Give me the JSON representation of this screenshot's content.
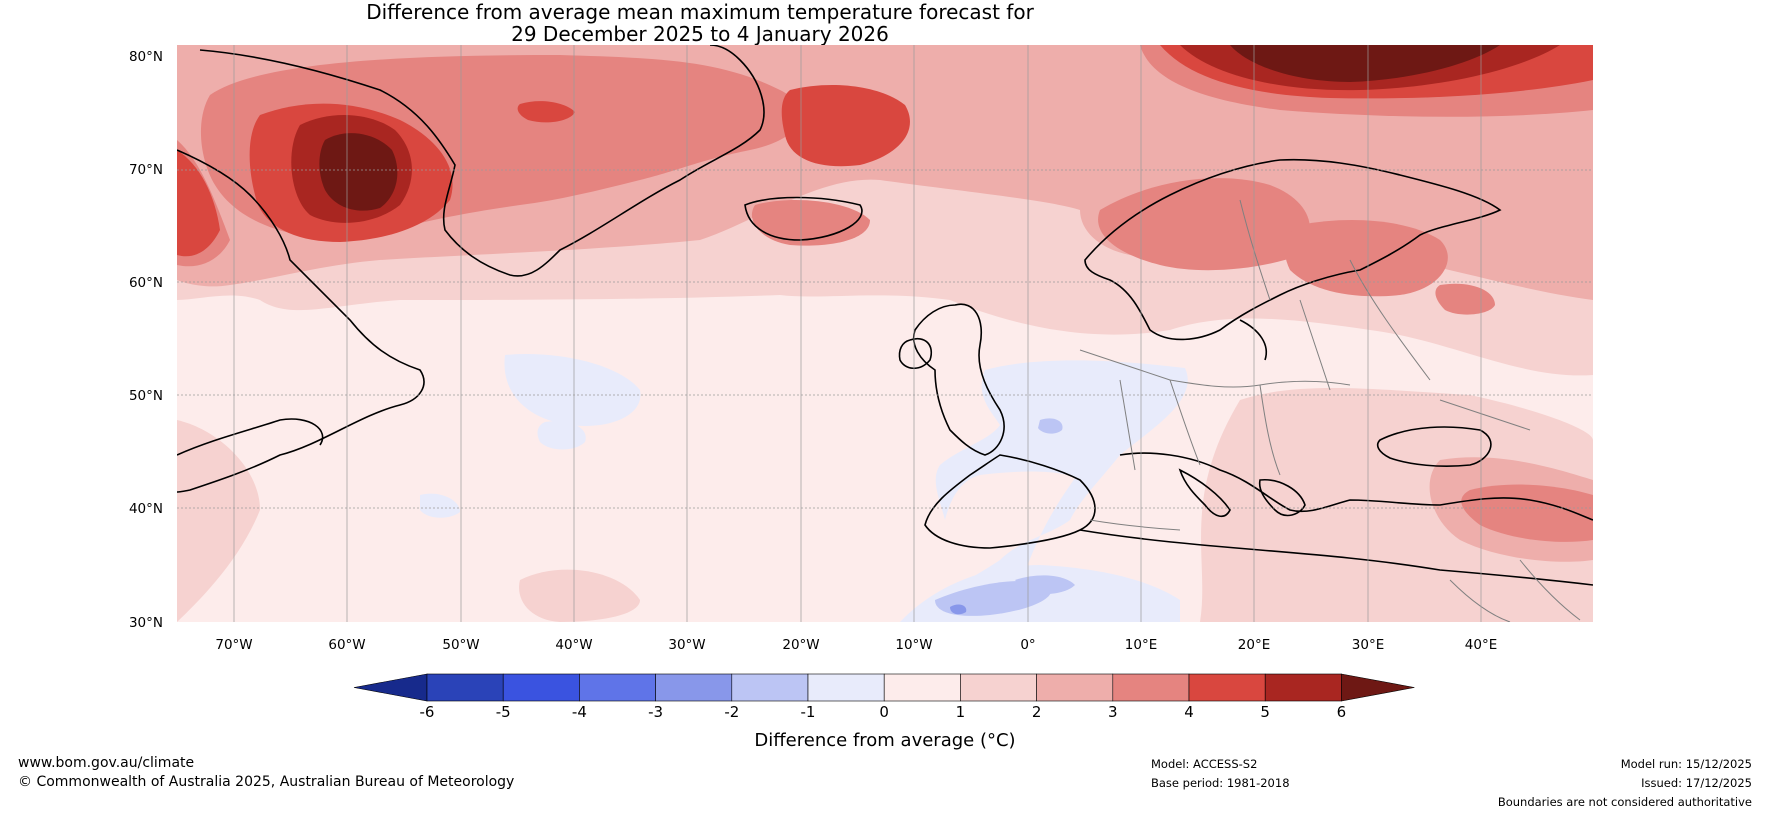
{
  "title": {
    "line1": "Difference from average mean maximum temperature forecast for",
    "line2": "29 December 2025 to 4 January 2026"
  },
  "map": {
    "lat_labels": [
      "80°N",
      "70°N",
      "60°N",
      "50°N",
      "40°N",
      "30°N"
    ],
    "lon_labels": [
      "70°W",
      "60°W",
      "50°W",
      "40°W",
      "30°W",
      "20°W",
      "10°W",
      "0°",
      "10°E",
      "20°E",
      "30°E",
      "40°E"
    ],
    "lat_range": [
      30,
      80
    ],
    "lon_range": [
      -75,
      50
    ]
  },
  "colorbar": {
    "ticks": [
      "-6",
      "-5",
      "-4",
      "-3",
      "-2",
      "-1",
      "0",
      "1",
      "2",
      "3",
      "4",
      "5",
      "6"
    ],
    "colors": [
      "#172a8c",
      "#2a43b8",
      "#3a53e0",
      "#5f74e8",
      "#8897ea",
      "#bcc5f4",
      "#e8ebfb",
      "#fdeceb",
      "#f6d2d0",
      "#eeaeab",
      "#e58480",
      "#d9473f",
      "#a92621",
      "#6e1814"
    ],
    "label": "Difference from average (°C)"
  },
  "footer": {
    "website": "www.bom.gov.au/climate",
    "copyright": "© Commonwealth of Australia 2025, Australian Bureau of Meteorology",
    "model": "Model: ACCESS-S2",
    "base_period": "Base period: 1981-2018",
    "model_run": "Model run: 15/12/2025",
    "issued": "Issued: 17/12/2025",
    "disclaimer": "Boundaries are not considered authoritative"
  }
}
